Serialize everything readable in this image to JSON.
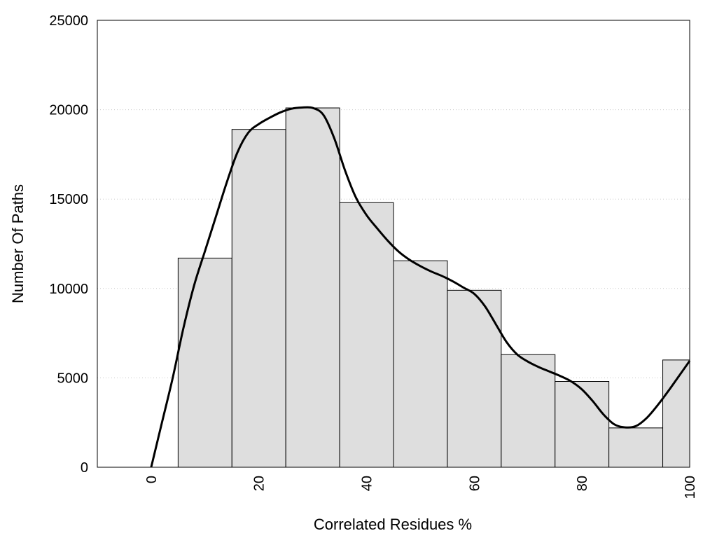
{
  "chart_data": {
    "type": "bar",
    "xlabel": "Correlated Residues %",
    "ylabel": "Number Of Paths",
    "xlim": [
      -10,
      100
    ],
    "ylim": [
      0,
      25000
    ],
    "x_ticks": [
      0,
      20,
      40,
      60,
      80,
      100
    ],
    "y_ticks": [
      0,
      5000,
      10000,
      15000,
      20000,
      25000
    ],
    "grid": "horizontal dotted",
    "bar_width": 10,
    "bar_color": "#dedede",
    "series": [
      {
        "type": "bar",
        "x": [
          10,
          20,
          30,
          40,
          50,
          60,
          70,
          80,
          90,
          100
        ],
        "values": [
          11700,
          18900,
          20100,
          14800,
          11550,
          9900,
          6300,
          4800,
          2200,
          6000
        ]
      },
      {
        "type": "line",
        "x": [
          0,
          2,
          4,
          6,
          8,
          10,
          12,
          14,
          16,
          18,
          20,
          22,
          24,
          26,
          28,
          30,
          32,
          34,
          36,
          38,
          40,
          42,
          44,
          46,
          48,
          50,
          52,
          54,
          56,
          58,
          60,
          62,
          64,
          66,
          68,
          70,
          72,
          74,
          76,
          78,
          80,
          82,
          84,
          86,
          88,
          90,
          92,
          94,
          96,
          98,
          100
        ],
        "values": [
          0,
          2500,
          5000,
          7800,
          10200,
          12100,
          14000,
          15900,
          17600,
          18700,
          19200,
          19550,
          19850,
          20050,
          20120,
          20100,
          19700,
          18400,
          16600,
          15100,
          14100,
          13350,
          12650,
          12050,
          11600,
          11250,
          10950,
          10700,
          10400,
          10050,
          9700,
          9000,
          8000,
          7000,
          6300,
          5900,
          5600,
          5350,
          5100,
          4800,
          4350,
          3700,
          2950,
          2400,
          2230,
          2300,
          2750,
          3450,
          4250,
          5100,
          5950
        ]
      }
    ]
  }
}
